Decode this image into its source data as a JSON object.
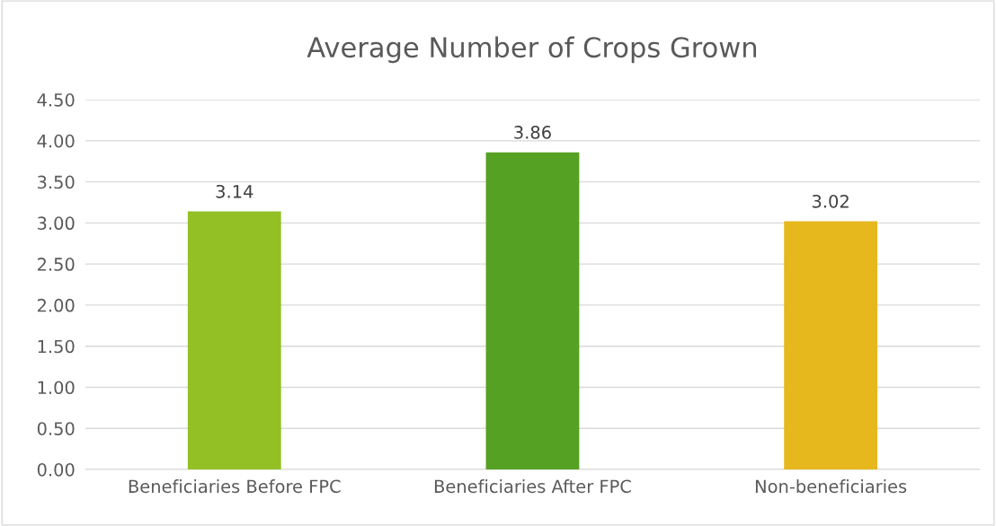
{
  "chart_data": {
    "type": "bar",
    "title": "Average Number of Crops Grown",
    "categories": [
      "Beneficiaries Before FPC",
      "Beneficiaries After FPC",
      "Non-beneficiaries"
    ],
    "values": [
      3.14,
      3.86,
      3.02
    ],
    "colors": [
      "#92c025",
      "#55a123",
      "#e6b81e"
    ],
    "ylim": [
      0,
      4.5
    ],
    "yticks": [
      {
        "value": 0,
        "label": "0.00"
      },
      {
        "value": 0.5,
        "label": "0.50"
      },
      {
        "value": 1,
        "label": "1.00"
      },
      {
        "value": 1.5,
        "label": "1.50"
      },
      {
        "value": 2,
        "label": "2.00"
      },
      {
        "value": 2.5,
        "label": "2.50"
      },
      {
        "value": 3,
        "label": "3.00"
      },
      {
        "value": 3.5,
        "label": "3.50"
      },
      {
        "value": 4,
        "label": "4.00"
      },
      {
        "value": 4.5,
        "label": "4.50"
      }
    ],
    "grid": "y",
    "data_labels": true
  }
}
